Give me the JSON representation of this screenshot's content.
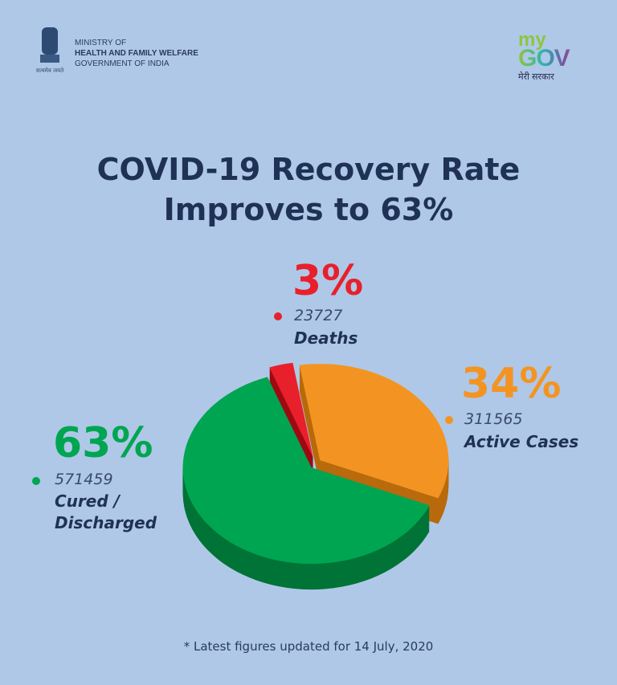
{
  "header": {
    "ministry_line1": "MINISTRY OF",
    "ministry_line2": "HEALTH AND FAMILY WELFARE",
    "ministry_line3": "GOVERNMENT OF INDIA",
    "emblem_motto": "सत्यमेव जयते",
    "mygov_my": "my",
    "mygov_gov": "GOV",
    "mygov_sub": "मेरी सरकार"
  },
  "title_line1": "COVID-19 Recovery Rate",
  "title_line2": "Improves to 63%",
  "footnote": "* Latest figures updated for 14 July, 2020",
  "colors": {
    "background": "#afc8e8",
    "cured": "#00a551",
    "active": "#f39422",
    "deaths": "#e8202b",
    "title": "#1f3256"
  },
  "chart_data": {
    "type": "pie",
    "style": "3d-exploded",
    "slices": [
      {
        "label": "Deaths",
        "percent_label": "3%",
        "value": 23727,
        "percent": 3,
        "color": "#e8202b",
        "side_color": "#9e0a12"
      },
      {
        "label": "Active Cases",
        "percent_label": "34%",
        "value": 311565,
        "percent": 34,
        "color": "#f39422",
        "side_color": "#b86a0c"
      },
      {
        "label": "Cured / Discharged",
        "label_line1": "Cured /",
        "label_line2": "Discharged",
        "percent_label": "63%",
        "value": 571459,
        "percent": 63,
        "color": "#00a551",
        "side_color": "#007336"
      }
    ]
  }
}
